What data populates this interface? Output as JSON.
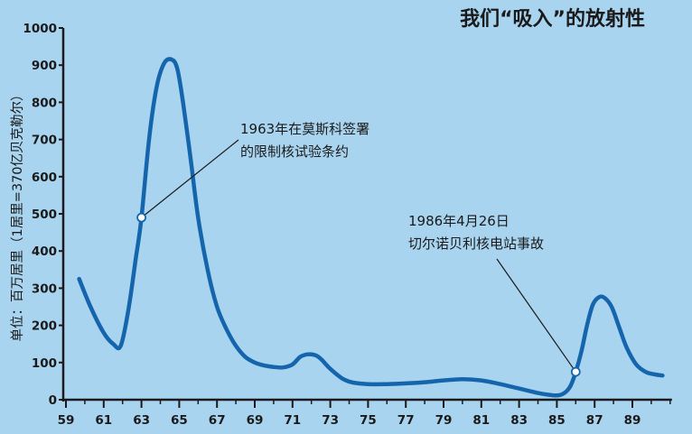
{
  "chart_data": {
    "type": "line",
    "title": "我们“吸入”的放射性",
    "ylabel": "单位：百万居里（1居里=370亿贝克勒尔）",
    "xlabel": "",
    "ylim": [
      0,
      1000
    ],
    "xlim": [
      59,
      91
    ],
    "yticks": [
      0,
      100,
      200,
      300,
      400,
      500,
      600,
      700,
      800,
      900,
      1000
    ],
    "xticks": [
      "59",
      "61",
      "63",
      "65",
      "67",
      "69",
      "71",
      "73",
      "75",
      "77",
      "79",
      "81",
      "83",
      "85",
      "87",
      "89"
    ],
    "series": [
      {
        "color": "#1565ad",
        "x": [
          59.7,
          60.3,
          61,
          61.5,
          61.9,
          62.3,
          62.7,
          63,
          63.4,
          63.8,
          64.2,
          64.6,
          64.9,
          65.2,
          65.6,
          66,
          66.5,
          67,
          67.5,
          68,
          68.5,
          69,
          69.5,
          70,
          70.5,
          71,
          71.4,
          71.8,
          72.2,
          72.5,
          72.9,
          73.3,
          73.7,
          74.2,
          75,
          76,
          77,
          78,
          79,
          80,
          81,
          82,
          83,
          84,
          84.8,
          85.3,
          85.7,
          86,
          86.3,
          86.6,
          86.9,
          87.2,
          87.5,
          87.9,
          88.3,
          88.7,
          89.2,
          89.7,
          90.2,
          90.6
        ],
        "y": [
          325,
          250,
          180,
          150,
          145,
          240,
          380,
          490,
          700,
          840,
          905,
          915,
          890,
          800,
          650,
          490,
          350,
          250,
          190,
          145,
          115,
          100,
          92,
          88,
          87,
          95,
          115,
          122,
          120,
          110,
          88,
          70,
          55,
          46,
          42,
          42,
          44,
          47,
          52,
          55,
          52,
          42,
          30,
          18,
          12,
          15,
          35,
          75,
          130,
          200,
          255,
          275,
          275,
          250,
          195,
          140,
          95,
          75,
          68,
          65
        ]
      }
    ],
    "annotations": [
      {
        "text": [
          "1963年在莫斯科签署",
          "的限制核试验条约"
        ],
        "x": 63,
        "y": 490
      },
      {
        "text": [
          "1986年4月26日",
          "切尔诺贝利核电站事故"
        ],
        "x": 86,
        "y": 75
      }
    ],
    "grid": false,
    "colors": {
      "background": "#a9d4ef",
      "line": "#1565ad",
      "axis": "#1a1a1a",
      "marker_fill": "#ffffff"
    }
  }
}
